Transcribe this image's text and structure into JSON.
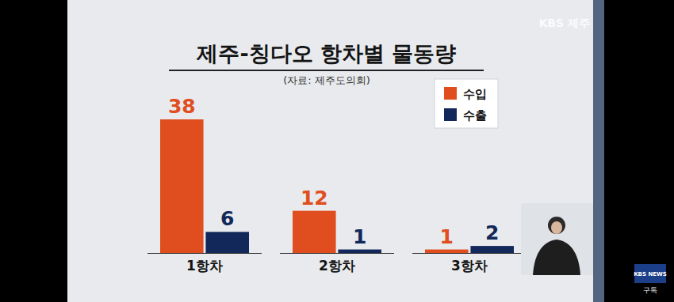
{
  "chart_data": {
    "type": "bar",
    "title": "제주-칭다오 항차별 물동량",
    "subtitle": "(자료: 제주도의회)",
    "annotations": [
      "KBS 제주",
      "KBS NEWS",
      "구독"
    ],
    "categories": [
      "1항차",
      "2항차",
      "3항차"
    ],
    "series": [
      {
        "name": "수입",
        "color": "#e04e1f",
        "values": [
          38,
          12,
          1
        ]
      },
      {
        "name": "수출",
        "color": "#12285a",
        "values": [
          6,
          1,
          2
        ]
      }
    ],
    "ylim": [
      0,
      38
    ],
    "grid": false,
    "legend": "upper right",
    "data_labels": true,
    "tick_labels": "x"
  }
}
